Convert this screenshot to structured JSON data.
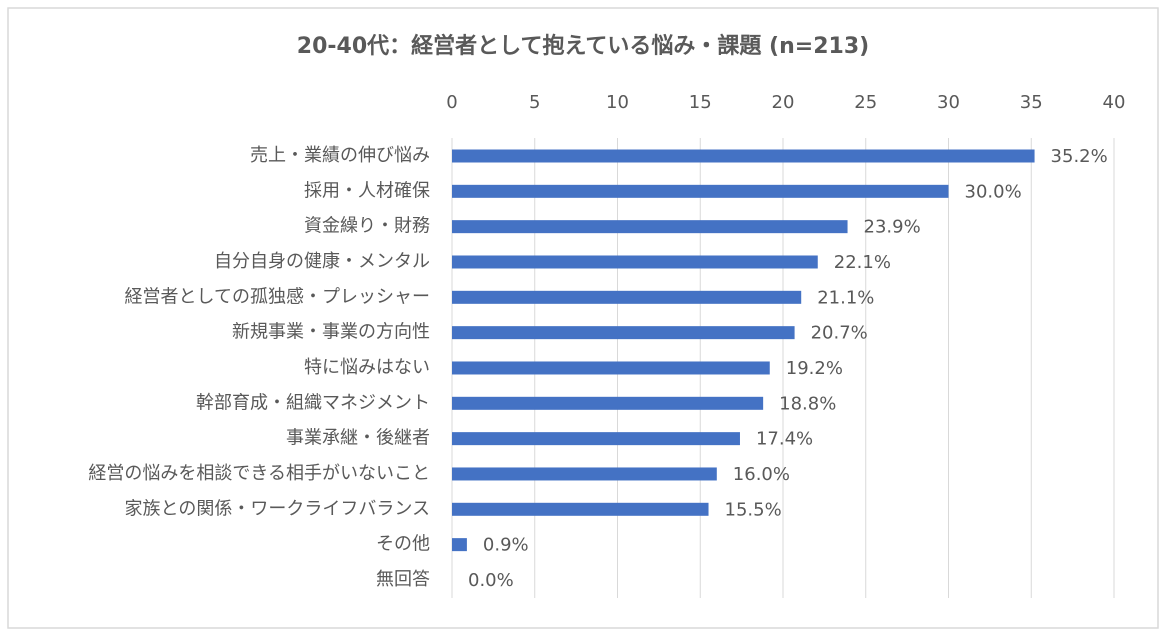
{
  "chart_data": {
    "type": "bar",
    "orientation": "horizontal",
    "title": "20-40代：経営者として抱えている悩み・課題 (n=213)",
    "categories": [
      "売上・業績の伸び悩み",
      "採用・人材確保",
      "資金繰り・財務",
      "自分自身の健康・メンタル",
      "経営者としての孤独感・プレッシャー",
      "新規事業・事業の方向性",
      "特に悩みはない",
      "幹部育成・組織マネジメント",
      "事業承継・後継者",
      "経営の悩みを相談できる相手がいないこと",
      "家族との関係・ワークライフバランス",
      "その他",
      "無回答"
    ],
    "values": [
      35.2,
      30.0,
      23.9,
      22.1,
      21.1,
      20.7,
      19.2,
      18.8,
      17.4,
      16.0,
      15.5,
      0.9,
      0.0
    ],
    "value_labels": [
      "35.2%",
      "30.0%",
      "23.9%",
      "22.1%",
      "21.1%",
      "20.7%",
      "19.2%",
      "18.8%",
      "17.4%",
      "16.0%",
      "15.5%",
      "0.9%",
      "0.0%"
    ],
    "color": "#4472c4",
    "xlim": [
      0,
      40
    ],
    "xticks": [
      0,
      5,
      10,
      15,
      20,
      25,
      30,
      35,
      40
    ],
    "grid": true
  }
}
